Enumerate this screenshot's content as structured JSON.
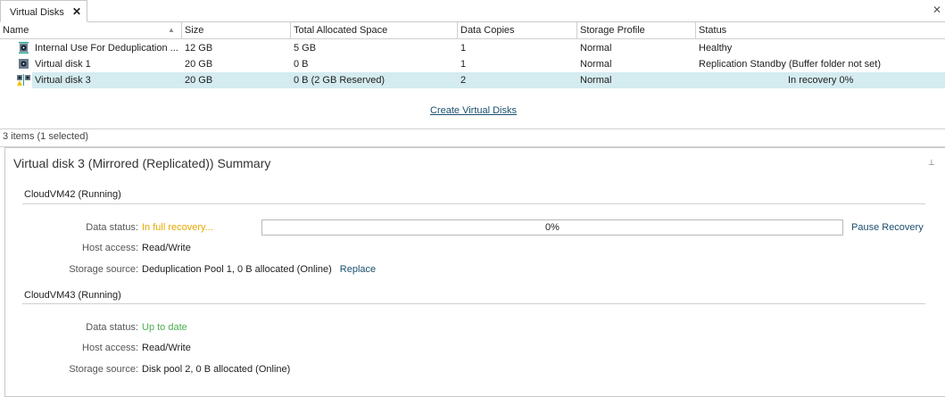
{
  "tab": {
    "label": "Virtual Disks"
  },
  "columns": [
    "Name",
    "Size",
    "Total Allocated Space",
    "Data Copies",
    "Storage Profile",
    "Status"
  ],
  "rows": [
    {
      "name": "Internal Use For Deduplication ...",
      "size": "12 GB",
      "allocated": "5 GB",
      "copies": "1",
      "profile": "Normal",
      "status": "Healthy",
      "icon": "dedup-disk-icon"
    },
    {
      "name": "Virtual disk 1",
      "size": "20 GB",
      "allocated": "0 B",
      "copies": "1",
      "profile": "Normal",
      "status": "Replication Standby (Buffer folder not set)",
      "icon": "virtual-disk-icon"
    },
    {
      "name": "Virtual disk 3",
      "size": "20 GB",
      "allocated": "0 B (2 GB Reserved)",
      "copies": "2",
      "profile": "Normal",
      "status": "In recovery 0%",
      "icon": "mirrored-disk-warning-icon",
      "selected": true
    }
  ],
  "create_link": "Create Virtual Disks",
  "item_count": "3 items (1 selected)",
  "summary": {
    "title": "Virtual disk 3 (Mirrored (Replicated)) Summary",
    "servers": [
      {
        "name": "CloudVM42 (Running)",
        "data_status_label": "Data status:",
        "data_status": "In full recovery...",
        "progress_text": "0%",
        "progress": 0,
        "action": "Pause Recovery",
        "host_access_label": "Host access:",
        "host_access": "Read/Write",
        "storage_label": "Storage source:",
        "storage": "Deduplication Pool 1, 0 B allocated (Online)",
        "storage_action": "Replace"
      },
      {
        "name": "CloudVM43 (Running)",
        "data_status_label": "Data status:",
        "data_status": "Up to date",
        "host_access_label": "Host access:",
        "host_access": "Read/Write",
        "storage_label": "Storage source:",
        "storage": "Disk pool 2, 0 B allocated (Online)"
      }
    ]
  },
  "colors": {
    "recovery": "#e8a800",
    "uptodate": "#4caf50",
    "link": "#1a4f6e",
    "selection": "#d4ebf0"
  }
}
